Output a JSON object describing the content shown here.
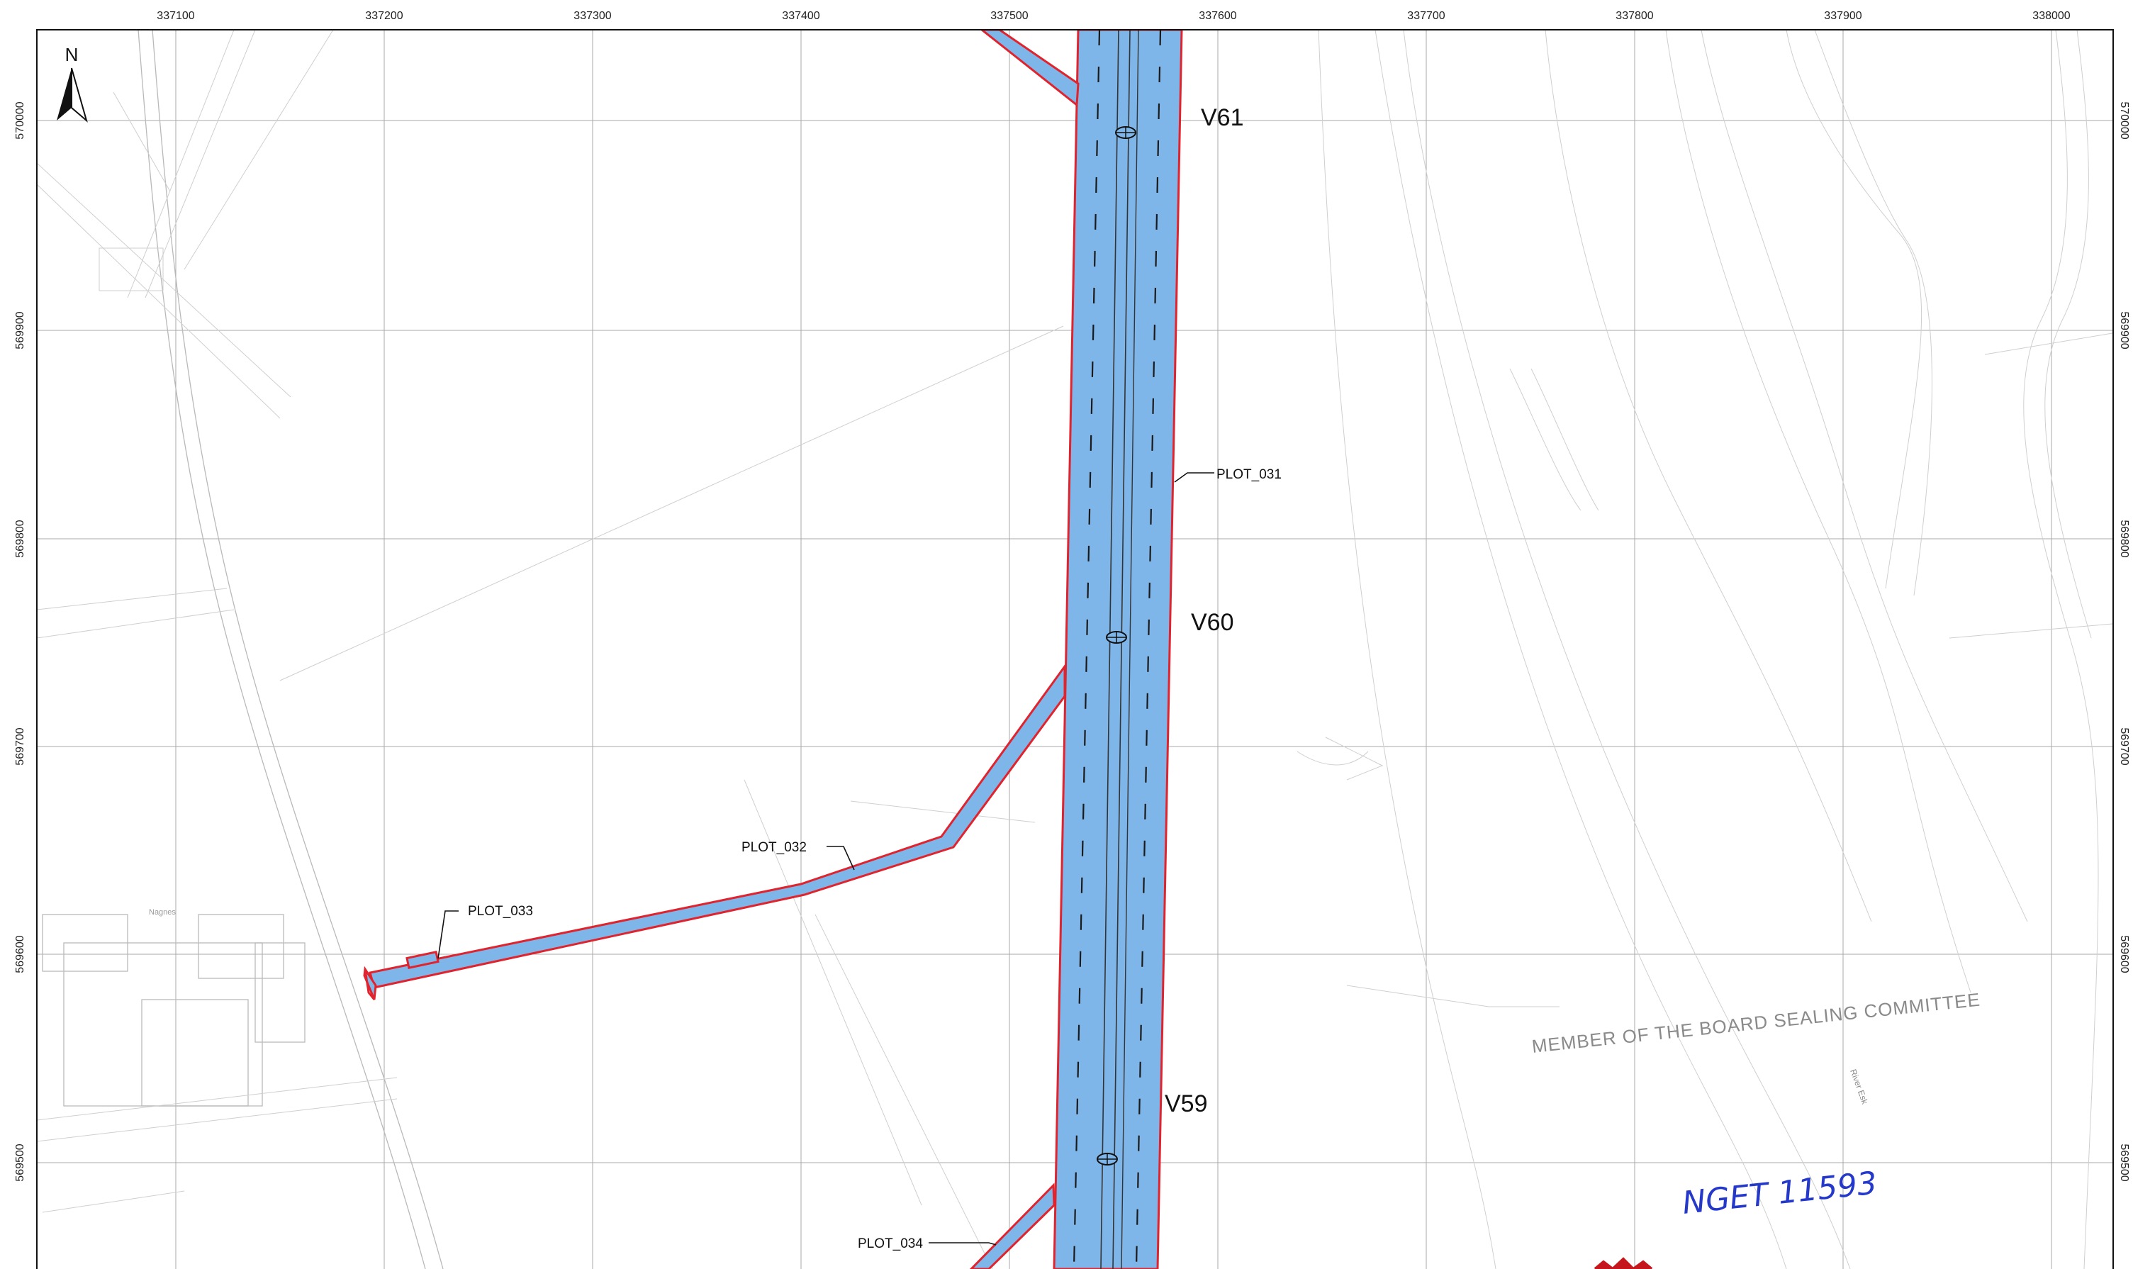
{
  "map": {
    "easting_ticks": [
      "337100",
      "337200",
      "337300",
      "337400",
      "337500",
      "337600",
      "337700",
      "337800",
      "337900",
      "338000"
    ],
    "northing_ticks": [
      "570000",
      "569900",
      "569800",
      "569700",
      "569600",
      "569500"
    ],
    "north_label": "N",
    "valve_labels": {
      "v61": "V61",
      "v60": "V60",
      "v59": "V59"
    },
    "plot_labels": {
      "plot_031": "PLOT_031",
      "plot_032": "PLOT_032",
      "plot_033": "PLOT_033",
      "plot_034": "PLOT_034"
    },
    "committee_text": "MEMBER OF THE BOARD SEALING COMMITTEE",
    "river_label": "River Esk",
    "small_label": "Nagnes",
    "handwritten_ref": "NGET 11593",
    "colors": {
      "corridor_fill": "#7fb6ea",
      "corridor_outline": "#e0232c",
      "handwriting": "#2438c9",
      "stamp": "#c4161c"
    }
  }
}
